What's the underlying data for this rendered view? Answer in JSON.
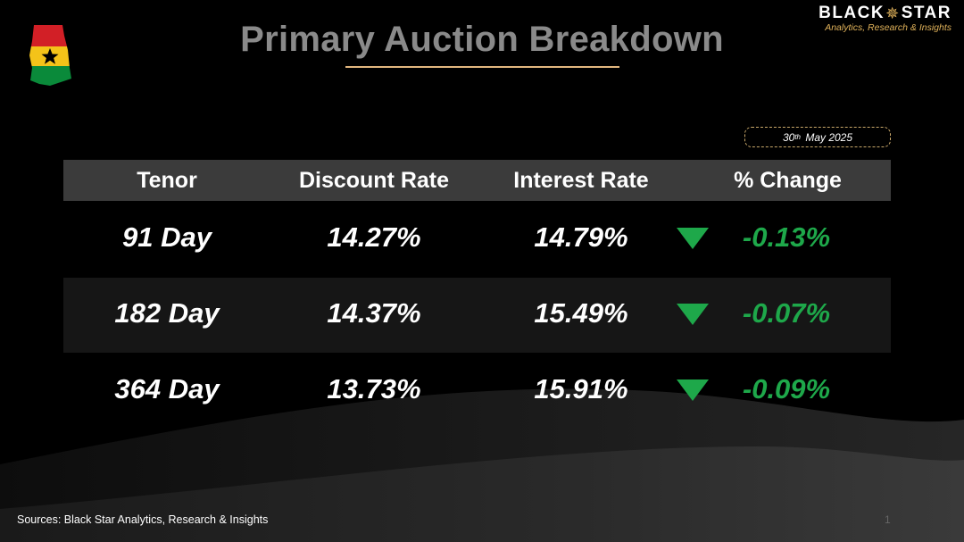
{
  "title": "Primary Auction Breakdown",
  "brand": {
    "name_left": "BLACK",
    "name_right": "STAR",
    "tagline": "Analytics, Research & Insights"
  },
  "date": {
    "day": "30",
    "suffix": "th",
    "rest": "May 2025"
  },
  "table": {
    "headers": [
      "Tenor",
      "Discount Rate",
      "Interest Rate",
      "% Change"
    ],
    "rows": [
      {
        "tenor": "91 Day",
        "discount": "14.27%",
        "interest": "14.79%",
        "change": "-0.13%",
        "direction": "down"
      },
      {
        "tenor": "182 Day",
        "discount": "14.37%",
        "interest": "15.49%",
        "change": "-0.07%",
        "direction": "down"
      },
      {
        "tenor": "364 Day",
        "discount": "13.73%",
        "interest": "15.91%",
        "change": "-0.09%",
        "direction": "down"
      }
    ]
  },
  "source": "Sources: Black Star Analytics, Research & Insights",
  "page_number": "1",
  "colors": {
    "accent_gold": "#e0b25a",
    "down_green": "#1ea84a",
    "header_bg": "#3b3b3b"
  },
  "icons": {
    "map": "ghana-flag-map-icon",
    "brand_star": "star-icon",
    "trend": "down-triangle-icon"
  }
}
